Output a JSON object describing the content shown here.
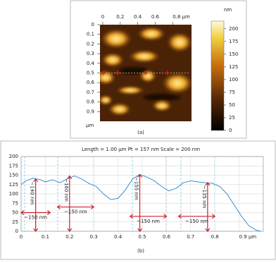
{
  "chart_data": [
    {
      "type": "image",
      "label": "(a)",
      "xlim": [
        0,
        1
      ],
      "ylim": [
        0,
        1
      ],
      "xticks": [
        0,
        0.2,
        0.4,
        0.6,
        {
          "value": 0.8,
          "label": "0.8 µm"
        }
      ],
      "yticks": [
        0,
        0.1,
        0.2,
        0.3,
        0.4,
        0.5,
        0.6,
        0.7,
        0.8,
        0.9
      ],
      "y_unit": "µm",
      "colorbar_label": "nm",
      "colorbar_lim": [
        0,
        215
      ],
      "colorbar_ticks": [
        0,
        25,
        50,
        75,
        100,
        125,
        150,
        175,
        200
      ],
      "markers": {
        "color": "#e0201a",
        "x": [
          0.01,
          0.17,
          0.49,
          0.74
        ],
        "y": [
          0.5,
          0.5,
          0.5,
          0.5
        ]
      }
    },
    {
      "type": "line",
      "title": "Length = 1.00 µm Pt = 157 nm Scale = 200 nm",
      "label": "(b)",
      "xlim": [
        0,
        1
      ],
      "ylim": [
        0,
        200
      ],
      "xticks": [
        0,
        0.1,
        0.2,
        0.3,
        0.4,
        0.5,
        0.6,
        0.7,
        0.8,
        {
          "value": 0.9,
          "label": "0.9 µm"
        }
      ],
      "yticks": [
        0,
        25,
        50,
        75,
        100,
        125,
        150,
        175,
        200
      ],
      "grid": true,
      "series": [
        {
          "color": "#3a8fd0",
          "x": [
            0,
            0.02,
            0.05,
            0.08,
            0.1,
            0.13,
            0.16,
            0.19,
            0.22,
            0.25,
            0.28,
            0.31,
            0.34,
            0.37,
            0.4,
            0.43,
            0.46,
            0.49,
            0.52,
            0.55,
            0.58,
            0.61,
            0.64,
            0.67,
            0.7,
            0.73,
            0.76,
            0.79,
            0.82,
            0.85,
            0.88,
            0.91,
            0.94,
            0.97,
            0.99
          ],
          "values": [
            125,
            135,
            142,
            138,
            132,
            138,
            130,
            140,
            148,
            140,
            128,
            120,
            100,
            85,
            88,
            110,
            140,
            152,
            145,
            135,
            120,
            108,
            115,
            130,
            135,
            132,
            130,
            128,
            120,
            100,
            70,
            40,
            15,
            3,
            0
          ]
        }
      ],
      "annotations": [
        {
          "text": "~140 nm",
          "x": 0.06,
          "y": 140
        },
        {
          "text": "~160 nm",
          "x": 0.2,
          "y": 148
        },
        {
          "text": "~155 nm",
          "x": 0.49,
          "y": 152
        },
        {
          "text": "~135 nm",
          "x": 0.77,
          "y": 130
        }
      ],
      "spans": [
        {
          "text": "~150 nm",
          "x": [
            0,
            0.12
          ],
          "y": 50
        },
        {
          "text": "~150 nm",
          "x": [
            0.15,
            0.3
          ],
          "y": 65
        },
        {
          "text": "~150 nm",
          "x": [
            0.45,
            0.6
          ],
          "y": 40
        },
        {
          "text": "~150 nm",
          "x": [
            0.65,
            0.8
          ],
          "y": 40
        }
      ]
    }
  ]
}
